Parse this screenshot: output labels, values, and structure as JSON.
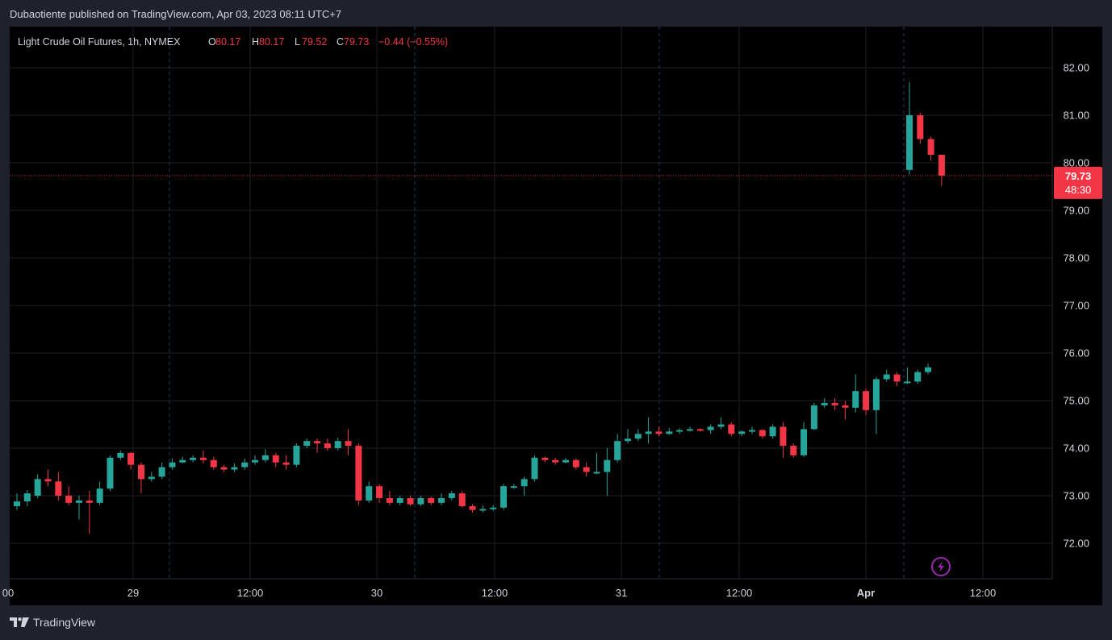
{
  "header": {
    "publisher": "Dubaotiente published on TradingView.com, Apr 03, 2023 08:11 UTC+7"
  },
  "footer": {
    "brand": "TradingView"
  },
  "chart_data": {
    "type": "candlestick",
    "legend": {
      "symbol": "Light Crude Oil Futures, 1h, NYMEX",
      "o_label": "O",
      "o": "80.17",
      "h_label": "H",
      "h": "80.17",
      "l_label": "L",
      "l": "79.52",
      "c_label": "C",
      "c": "79.73",
      "change": "−0.44 (−0.55%)"
    },
    "y_ticks": [
      "82.00",
      "81.00",
      "80.00",
      "79.00",
      "78.00",
      "77.00",
      "76.00",
      "75.00",
      "74.00",
      "73.00",
      "72.00"
    ],
    "x_ticks": [
      "00",
      "29",
      "12:00",
      "30",
      "12:00",
      "31",
      "12:00",
      "Apr",
      "12:00"
    ],
    "ylim": [
      71.3,
      82.9
    ],
    "last_price": {
      "value": "79.73",
      "countdown": "48:30",
      "color": "#f23645"
    },
    "colors": {
      "up": "#26a69a",
      "down": "#f23645",
      "grid": "#1c1f26",
      "background": "#000000"
    },
    "candles": [
      [
        72.78,
        72.88,
        72.7,
        73.05
      ],
      [
        72.88,
        73.05,
        72.78,
        73.12
      ],
      [
        73.0,
        73.35,
        72.95,
        73.45
      ],
      [
        73.35,
        73.3,
        73.2,
        73.55
      ],
      [
        73.3,
        73.0,
        72.9,
        73.5
      ],
      [
        73.0,
        72.85,
        72.8,
        73.2
      ],
      [
        72.85,
        72.9,
        72.5,
        73.0
      ],
      [
        72.9,
        72.85,
        72.2,
        73.1
      ],
      [
        72.85,
        73.15,
        72.8,
        73.3
      ],
      [
        73.15,
        73.8,
        73.1,
        73.85
      ],
      [
        73.8,
        73.9,
        73.75,
        73.95
      ],
      [
        73.9,
        73.65,
        73.55,
        73.92
      ],
      [
        73.65,
        73.35,
        73.05,
        73.7
      ],
      [
        73.35,
        73.4,
        73.3,
        73.5
      ],
      [
        73.4,
        73.6,
        73.35,
        73.7
      ],
      [
        73.6,
        73.7,
        73.55,
        73.78
      ],
      [
        73.7,
        73.75,
        73.68,
        73.82
      ],
      [
        73.75,
        73.8,
        73.7,
        73.85
      ],
      [
        73.8,
        73.75,
        73.68,
        73.95
      ],
      [
        73.75,
        73.6,
        73.55,
        73.82
      ],
      [
        73.6,
        73.55,
        73.5,
        73.65
      ],
      [
        73.55,
        73.6,
        73.5,
        73.68
      ],
      [
        73.6,
        73.7,
        73.55,
        73.78
      ],
      [
        73.7,
        73.75,
        73.65,
        73.85
      ],
      [
        73.75,
        73.85,
        73.7,
        73.98
      ],
      [
        73.85,
        73.7,
        73.6,
        73.9
      ],
      [
        73.7,
        73.65,
        73.55,
        73.85
      ],
      [
        73.65,
        74.05,
        73.6,
        74.1
      ],
      [
        74.05,
        74.15,
        74.0,
        74.2
      ],
      [
        74.15,
        74.1,
        73.9,
        74.2
      ],
      [
        74.1,
        74.0,
        73.95,
        74.2
      ],
      [
        74.0,
        74.15,
        73.95,
        74.22
      ],
      [
        74.15,
        74.05,
        73.85,
        74.4
      ],
      [
        74.05,
        72.9,
        72.8,
        74.1
      ],
      [
        72.9,
        73.2,
        72.85,
        73.3
      ],
      [
        73.2,
        72.95,
        72.85,
        73.25
      ],
      [
        72.95,
        72.85,
        72.8,
        73.1
      ],
      [
        72.85,
        72.95,
        72.8,
        73.0
      ],
      [
        72.95,
        72.82,
        72.78,
        73.0
      ],
      [
        72.82,
        72.95,
        72.78,
        73.0
      ],
      [
        72.95,
        72.85,
        72.8,
        72.98
      ],
      [
        72.85,
        72.95,
        72.8,
        73.05
      ],
      [
        72.95,
        73.05,
        72.9,
        73.1
      ],
      [
        73.05,
        72.78,
        72.75,
        73.1
      ],
      [
        72.78,
        72.7,
        72.65,
        72.82
      ],
      [
        72.7,
        72.72,
        72.65,
        72.8
      ],
      [
        72.72,
        72.75,
        72.68,
        72.8
      ],
      [
        72.75,
        73.2,
        72.7,
        73.25
      ],
      [
        73.2,
        73.2,
        73.15,
        73.25
      ],
      [
        73.2,
        73.35,
        73.0,
        73.4
      ],
      [
        73.35,
        73.8,
        73.3,
        73.85
      ],
      [
        73.8,
        73.75,
        73.7,
        73.82
      ],
      [
        73.75,
        73.7,
        73.65,
        73.8
      ],
      [
        73.7,
        73.75,
        73.68,
        73.8
      ],
      [
        73.75,
        73.6,
        73.55,
        73.78
      ],
      [
        73.6,
        73.5,
        73.4,
        73.7
      ],
      [
        73.5,
        73.5,
        73.45,
        73.9
      ],
      [
        73.5,
        73.75,
        73.0,
        74.0
      ],
      [
        73.75,
        74.15,
        73.7,
        74.3
      ],
      [
        74.15,
        74.2,
        74.1,
        74.4
      ],
      [
        74.2,
        74.3,
        74.15,
        74.4
      ],
      [
        74.3,
        74.35,
        74.1,
        74.65
      ],
      [
        74.35,
        74.3,
        74.25,
        74.45
      ],
      [
        74.3,
        74.35,
        74.28,
        74.42
      ],
      [
        74.35,
        74.38,
        74.3,
        74.42
      ],
      [
        74.38,
        74.4,
        74.35,
        74.45
      ],
      [
        74.4,
        74.38,
        74.35,
        74.42
      ],
      [
        74.38,
        74.45,
        74.3,
        74.5
      ],
      [
        74.45,
        74.5,
        74.4,
        74.65
      ],
      [
        74.5,
        74.3,
        74.25,
        74.55
      ],
      [
        74.3,
        74.35,
        74.25,
        74.38
      ],
      [
        74.35,
        74.38,
        74.3,
        74.45
      ],
      [
        74.38,
        74.25,
        74.2,
        74.4
      ],
      [
        74.25,
        74.45,
        74.2,
        74.5
      ],
      [
        74.45,
        74.05,
        73.8,
        74.55
      ],
      [
        74.05,
        73.85,
        73.8,
        74.1
      ],
      [
        73.85,
        74.4,
        73.82,
        74.55
      ],
      [
        74.4,
        74.9,
        74.38,
        74.95
      ],
      [
        74.9,
        74.95,
        74.85,
        75.05
      ],
      [
        74.95,
        74.9,
        74.8,
        75.05
      ],
      [
        74.9,
        74.85,
        74.6,
        75.0
      ],
      [
        74.85,
        75.2,
        74.75,
        75.55
      ],
      [
        75.2,
        74.8,
        74.7,
        75.25
      ],
      [
        74.8,
        75.45,
        74.3,
        75.5
      ],
      [
        75.45,
        75.55,
        75.4,
        75.65
      ],
      [
        75.55,
        75.4,
        75.3,
        75.6
      ],
      [
        75.4,
        75.4,
        75.35,
        75.7
      ],
      [
        75.4,
        75.6,
        75.35,
        75.65
      ],
      [
        75.6,
        75.7,
        75.55,
        75.78
      ],
      [
        79.85,
        81.0,
        79.75,
        81.7
      ],
      [
        81.0,
        80.5,
        80.4,
        81.05
      ],
      [
        80.5,
        80.17,
        80.05,
        80.55
      ],
      [
        80.17,
        79.73,
        79.52,
        80.17
      ]
    ],
    "candle_times": [
      0,
      1,
      2,
      3,
      4,
      5,
      6,
      7,
      8,
      9,
      10,
      11,
      12,
      13,
      14,
      15,
      16,
      17,
      18,
      19,
      20,
      21,
      22,
      23,
      24,
      25,
      26,
      27,
      28,
      29,
      30,
      31,
      32,
      33,
      34,
      35,
      36,
      37,
      38,
      39,
      40,
      41,
      42,
      43,
      44,
      45,
      46,
      47,
      48,
      49,
      50,
      51,
      52,
      53,
      54,
      55,
      56,
      57,
      58,
      59,
      60,
      61,
      62,
      63,
      64,
      65,
      66,
      67,
      68,
      69,
      70,
      71,
      72,
      73,
      74,
      75,
      76,
      77,
      78,
      79,
      80,
      81,
      82,
      83,
      84,
      85,
      86,
      87,
      88,
      89,
      90,
      91,
      92
    ],
    "gap_note_times": [
      89,
      90,
      91,
      92
    ]
  }
}
